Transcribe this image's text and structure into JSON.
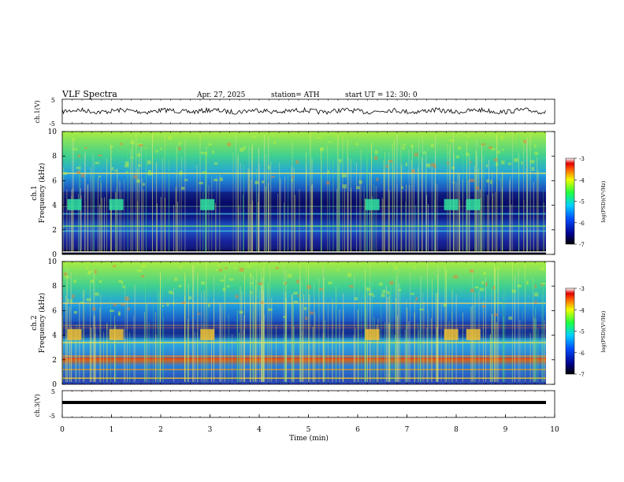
{
  "header": {
    "title": "VLF  Spectra",
    "date": "Apr. 27, 2025",
    "station": "station= ATH",
    "start": "start  UT  =    12: 30: 0"
  },
  "chart_data": [
    {
      "type": "line",
      "ylabel": "ch.1(V)",
      "ylim": [
        -5,
        5
      ],
      "yticks": [
        "5",
        "-5"
      ],
      "description": "waveform trace near 0 V with small fluctuations"
    },
    {
      "type": "heatmap",
      "ylabel_line1": "ch.1",
      "ylabel_line2": "Frequency  (kHz)",
      "ylim": [
        0,
        10
      ],
      "yticks": [
        "0",
        "2",
        "4",
        "6",
        "8",
        "10"
      ],
      "colorbar": {
        "label": "log(PSD)(V²/Hz)",
        "range": [
          -7,
          -3
        ],
        "ticks": [
          "-3",
          "-4",
          "-5",
          "-6",
          "-7"
        ]
      },
      "bright_blocks_min": [
        0.2,
        1.05,
        2.9,
        6.25,
        7.85,
        8.3
      ]
    },
    {
      "type": "heatmap",
      "ylabel_line1": "ch.2",
      "ylabel_line2": "Frequency  (kHz)",
      "ylim": [
        0,
        10
      ],
      "yticks": [
        "0",
        "2",
        "4",
        "6",
        "8",
        "10"
      ],
      "colorbar": {
        "label": "log(PSD)(V²/Hz)",
        "range": [
          -7,
          -3
        ],
        "ticks": [
          "-3",
          "-4",
          "-5",
          "-6",
          "-7"
        ]
      },
      "bright_blocks_min": [
        0.2,
        1.05,
        2.9,
        6.25,
        7.85,
        8.3
      ]
    },
    {
      "type": "line",
      "ylabel": "ch.3(V)",
      "ylim": [
        -5,
        5
      ],
      "yticks": [
        "5",
        "-5"
      ],
      "description": "flat trace near -0.5 V"
    }
  ],
  "xaxis": {
    "label": "Time  (min)",
    "range": [
      0,
      10
    ],
    "ticks": [
      "0",
      "1",
      "2",
      "3",
      "4",
      "5",
      "6",
      "7",
      "8",
      "9",
      "10"
    ]
  },
  "colors": {
    "spectrum_low": "#0a0a7a",
    "spectrum_mid": "#1fa0e0",
    "spectrum_high": "#c0f020"
  }
}
